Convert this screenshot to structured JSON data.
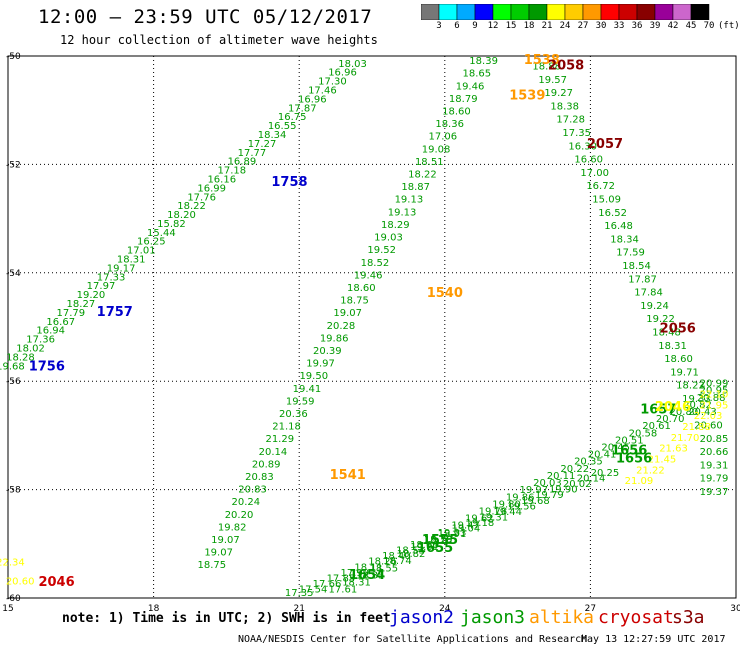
{
  "title": "12:00 – 23:59 UTC 05/12/2017",
  "subtitle": "12 hour collection of altimeter wave heights",
  "colorbar": {
    "labels": [
      "3",
      "6",
      "9",
      "12",
      "15",
      "18",
      "21",
      "24",
      "27",
      "30",
      "33",
      "36",
      "39",
      "42",
      "45",
      "70",
      "(ft)"
    ],
    "colors": [
      "#777777",
      "#00ffff",
      "#00aaff",
      "#0000ff",
      "#00ff00",
      "#00cc00",
      "#009900",
      "#ffff00",
      "#ffcc00",
      "#ff9900",
      "#ff0000",
      "#cc0000",
      "#880000",
      "#990099",
      "#cc66cc",
      "#000000"
    ]
  },
  "axes": {
    "x_ticks": [
      "15",
      "18",
      "21",
      "24",
      "27",
      "30"
    ],
    "y_ticks": [
      "-50",
      "-52",
      "-54",
      "-56",
      "-58",
      "-60"
    ]
  },
  "note": "note: 1) Time is in UTC; 2) SWH is in feet",
  "legend": [
    {
      "name": "jason2",
      "color": "#0000cc"
    },
    {
      "name": "jason3",
      "color": "#009900"
    },
    {
      "name": "altika",
      "color": "#ff9900"
    },
    {
      "name": "cryosat",
      "color": "#cc0000"
    },
    {
      "name": "s3a",
      "color": "#880000"
    }
  ],
  "footer": "NOAA/NESDIS Center for Satellite Applications and Research",
  "footer_date": "May 13 12:27:59 UTC 2017",
  "tracks": {
    "jason3_a": {
      "color": "#009900",
      "lon_start": 15.05,
      "lat_start": -55.78,
      "lon_end": 22.1,
      "lat_end": -50.2,
      "values": [
        "19.68",
        "18.28",
        "18.02",
        "17.36",
        "16.94",
        "16.67",
        "17.79",
        "18.27",
        "19.20",
        "17.97",
        "17.33",
        "19.17",
        "18.31",
        "17.01",
        "16.25",
        "15.44",
        "15.82",
        "18.20",
        "18.22",
        "17.76",
        "16.99",
        "16.16",
        "17.18",
        "16.89",
        "17.77",
        "17.27",
        "18.34",
        "16.55",
        "16.75",
        "17.87",
        "16.96",
        "17.46",
        "17.30",
        "16.96",
        "18.03"
      ]
    },
    "jason3_b": {
      "color": "#009900",
      "lon_start": 19.2,
      "lat_start": -59.45,
      "lon_end": 24.8,
      "lat_end": -50.15,
      "values": [
        "18.75",
        "19.07",
        "19.07",
        "19.82",
        "20.20",
        "20.24",
        "20.83",
        "20.83",
        "20.89",
        "20.14",
        "21.29",
        "21.18",
        "20.36",
        "19.59",
        "19.41",
        "19.50",
        "19.97",
        "20.39",
        "19.86",
        "20.28",
        "19.07",
        "18.75",
        "18.60",
        "19.46",
        "18.52",
        "19.52",
        "19.03",
        "18.29",
        "19.13",
        "19.13",
        "18.87",
        "18.22",
        "18.51",
        "19.08",
        "17.06",
        "18.36",
        "18.60",
        "18.79",
        "19.46",
        "18.65",
        "18.39"
      ]
    },
    "jason3_c": {
      "color": "#009900",
      "lon_start": 26.1,
      "lat_start": -50.25,
      "lon_end": 30.05,
      "lat_end": -58.1,
      "values": [
        "18.88",
        "19.57",
        "19.27",
        "18.38",
        "17.28",
        "17.35",
        "16.30",
        "16.60",
        "17.00",
        "16.72",
        "15.09",
        "16.52",
        "16.48",
        "18.34",
        "17.59",
        "18.54",
        "17.87",
        "17.84",
        "19.24",
        "19.22",
        "18.48",
        "18.31",
        "18.60",
        "19.71",
        "18.22",
        "19.33",
        "20.43",
        "20.60",
        "20.85",
        "20.66",
        "19.31",
        "19.79",
        "19.37"
      ]
    },
    "jason3_d": {
      "color": "#009900",
      "lon_start": 21.9,
      "lat_start": -59.9,
      "lon_end": 30.05,
      "lat_end": -56.1,
      "values": [
        "17.61",
        "18.31",
        "18.35",
        "18.55",
        "18.74",
        "18.82",
        "19.01",
        "19.15",
        "19.33",
        "19.47",
        "19.62",
        "19.78",
        "19.80",
        "19.86",
        "19.97",
        "20.03",
        "20.11",
        "20.22",
        "20.35",
        "20.41",
        "20.45",
        "20.51",
        "20.58",
        "20.61",
        "20.70",
        "20.80",
        "20.82",
        "20.88",
        "20.95",
        "20.99"
      ]
    },
    "jason3_e": {
      "color": "#009900",
      "lon_start": 21.0,
      "lat_start": -60.0,
      "lon_end": 27.3,
      "lat_end": -57.75,
      "values": [
        "17.35",
        "17.54",
        "17.66",
        "17.85",
        "17.99",
        "18.11",
        "18.26",
        "18.40",
        "18.53",
        "18.66",
        "18.79",
        "18.91",
        "19.04",
        "19.18",
        "19.31",
        "19.44",
        "19.56",
        "19.68",
        "19.79",
        "19.90",
        "20.02",
        "20.14",
        "20.25"
      ]
    },
    "yellow_a": {
      "color": "#ffff00",
      "lon_start": 15.05,
      "lat_start": -59.4,
      "lon_end": 15.25,
      "lat_end": -59.75,
      "values": [
        "22.34",
        "20.60"
      ]
    },
    "yellow_b": {
      "color": "#ffff00",
      "lon_start": 28.0,
      "lat_start": -57.9,
      "lon_end": 29.9,
      "lat_end": -56.3,
      "values": [
        "21.09",
        "21.22",
        "21.45",
        "21.63",
        "21.70",
        "21.88",
        "22.03",
        "21.95",
        "22.10"
      ]
    }
  },
  "time_labels": [
    {
      "text": "1756",
      "color": "#0000cc",
      "lon": 15.8,
      "lat": -55.8
    },
    {
      "text": "1757",
      "color": "#0000cc",
      "lon": 17.2,
      "lat": -54.8
    },
    {
      "text": "1758",
      "color": "#0000cc",
      "lon": 20.8,
      "lat": -52.4
    },
    {
      "text": "1540",
      "color": "#ff9900",
      "lon": 24.0,
      "lat": -54.45
    },
    {
      "text": "1541",
      "color": "#ff9900",
      "lon": 22.0,
      "lat": -57.8
    },
    {
      "text": "1539",
      "color": "#ff9900",
      "lon": 25.7,
      "lat": -50.8
    },
    {
      "text": "1538",
      "color": "#ff9900",
      "lon": 26.0,
      "lat": -50.0
    },
    {
      "text": "2058",
      "color": "#880000",
      "lon": 26.5,
      "lat": -50.25
    },
    {
      "text": "2057",
      "color": "#880000",
      "lon": 27.3,
      "lat": -51.7
    },
    {
      "text": "2056",
      "color": "#880000",
      "lon": 28.8,
      "lat": -55.1
    },
    {
      "text": "2046",
      "color": "#cc0000",
      "lon": 16.0,
      "lat": -59.78
    },
    {
      "text": "1555",
      "color": "#009900",
      "lon": 23.9,
      "lat": -59.0
    },
    {
      "text": "1655",
      "color": "#009900",
      "lon": 23.8,
      "lat": -59.15
    },
    {
      "text": "1654",
      "color": "#009900",
      "lon": 22.4,
      "lat": -59.65
    },
    {
      "text": "1656",
      "color": "#009900",
      "lon": 27.8,
      "lat": -57.35
    },
    {
      "text": "1656",
      "color": "#009900",
      "lon": 27.9,
      "lat": -57.5
    },
    {
      "text": "1657",
      "color": "#009900",
      "lon": 28.4,
      "lat": -56.6
    },
    {
      "text": "2046",
      "color": "#ffff00",
      "lon": 28.7,
      "lat": -56.55
    }
  ]
}
